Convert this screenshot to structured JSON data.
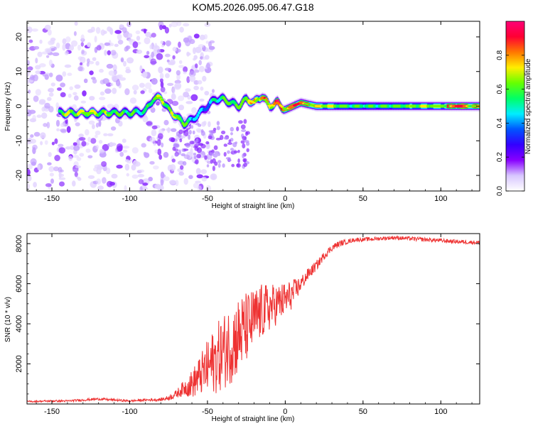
{
  "title": "KOM5.2026.095.06.47.G18",
  "chart_data": [
    {
      "type": "heatmap",
      "title": "KOM5.2026.095.06.47.G18",
      "xlabel": "Height of straight line (km)",
      "ylabel": "Frequency (Hz)",
      "xlim": [
        -166,
        125
      ],
      "ylim": [
        -24.5,
        24.5
      ],
      "xticks": [
        -150,
        -100,
        -50,
        0,
        50,
        100
      ],
      "yticks": [
        20,
        10,
        0,
        -10,
        -20
      ],
      "colorbar": {
        "label": "Normalized spectral amplitude",
        "range": [
          0,
          1
        ],
        "ticks": [
          "0.0",
          "0.2",
          "0.4",
          "0.6",
          "0.8"
        ],
        "tick_values": [
          0,
          0.2,
          0.4,
          0.6,
          0.8
        ],
        "colors": [
          "#ffffff",
          "#d8c6ff",
          "#8800ff",
          "#3300ff",
          "#0055ff",
          "#00eeff",
          "#00ff66",
          "#66ff00",
          "#ffee00",
          "#ff7700",
          "#ff0033",
          "#ff0077"
        ]
      },
      "ridge": {
        "x": [
          -145,
          -130,
          -115,
          -100,
          -90,
          -85,
          -80,
          -75,
          -70,
          -65,
          -60,
          -55,
          -50,
          -45,
          -40,
          -35,
          -30,
          -25,
          -20,
          -15,
          -10,
          -5,
          0,
          5,
          10,
          20,
          40,
          60,
          80,
          100,
          110,
          125
        ],
        "freq": [
          -2,
          -2,
          -2,
          -2,
          -1.5,
          2,
          2.5,
          -1,
          -3,
          -5,
          -4,
          -2,
          0,
          2,
          2,
          1,
          0,
          2,
          1,
          3,
          0,
          1,
          -1,
          0,
          1,
          0,
          0,
          0,
          0,
          0,
          0,
          0
        ],
        "amp": [
          0.5,
          0.55,
          0.5,
          0.45,
          0.4,
          0.5,
          0.55,
          0.5,
          0.55,
          0.45,
          0.4,
          0.35,
          0.3,
          0.4,
          0.45,
          0.5,
          0.45,
          0.55,
          0.6,
          0.65,
          0.6,
          0.7,
          0.75,
          0.75,
          0.75,
          0.6,
          0.45,
          0.45,
          0.5,
          0.55,
          0.8,
          0.6
        ]
      }
    },
    {
      "type": "line",
      "xlabel": "Height of straight line (km)",
      "ylabel": "SNR (10 * v/v)",
      "xlim": [
        -166,
        125
      ],
      "ylim": [
        0,
        8500
      ],
      "xticks": [
        -150,
        -100,
        -50,
        0,
        50,
        100
      ],
      "yticks": [
        2000,
        4000,
        6000,
        8000
      ],
      "color": "#ee3333",
      "series": [
        {
          "name": "SNR",
          "x": [
            -166,
            -150,
            -140,
            -130,
            -120,
            -110,
            -100,
            -90,
            -80,
            -75,
            -70,
            -65,
            -60,
            -55,
            -50,
            -45,
            -40,
            -35,
            -30,
            -25,
            -20,
            -15,
            -10,
            -5,
            0,
            5,
            10,
            15,
            20,
            25,
            30,
            35,
            40,
            45,
            50,
            60,
            70,
            80,
            90,
            100,
            110,
            125
          ],
          "y": [
            120,
            150,
            150,
            200,
            250,
            200,
            150,
            200,
            220,
            300,
            500,
            800,
            1000,
            1400,
            1800,
            2200,
            2600,
            3000,
            3400,
            3800,
            4200,
            4600,
            4800,
            5000,
            5200,
            5500,
            6000,
            6500,
            6900,
            7400,
            7800,
            8000,
            8100,
            8200,
            8200,
            8250,
            8300,
            8250,
            8200,
            8150,
            8100,
            8050
          ],
          "noise": [
            40,
            50,
            50,
            60,
            60,
            60,
            50,
            60,
            80,
            120,
            200,
            400,
            700,
            1000,
            1400,
            1700,
            1900,
            2000,
            2000,
            1800,
            1600,
            1400,
            1200,
            1000,
            900,
            700,
            400,
            300,
            250,
            200,
            180,
            150,
            120,
            100,
            100,
            100,
            100,
            100,
            100,
            100,
            100,
            100
          ]
        }
      ]
    }
  ]
}
